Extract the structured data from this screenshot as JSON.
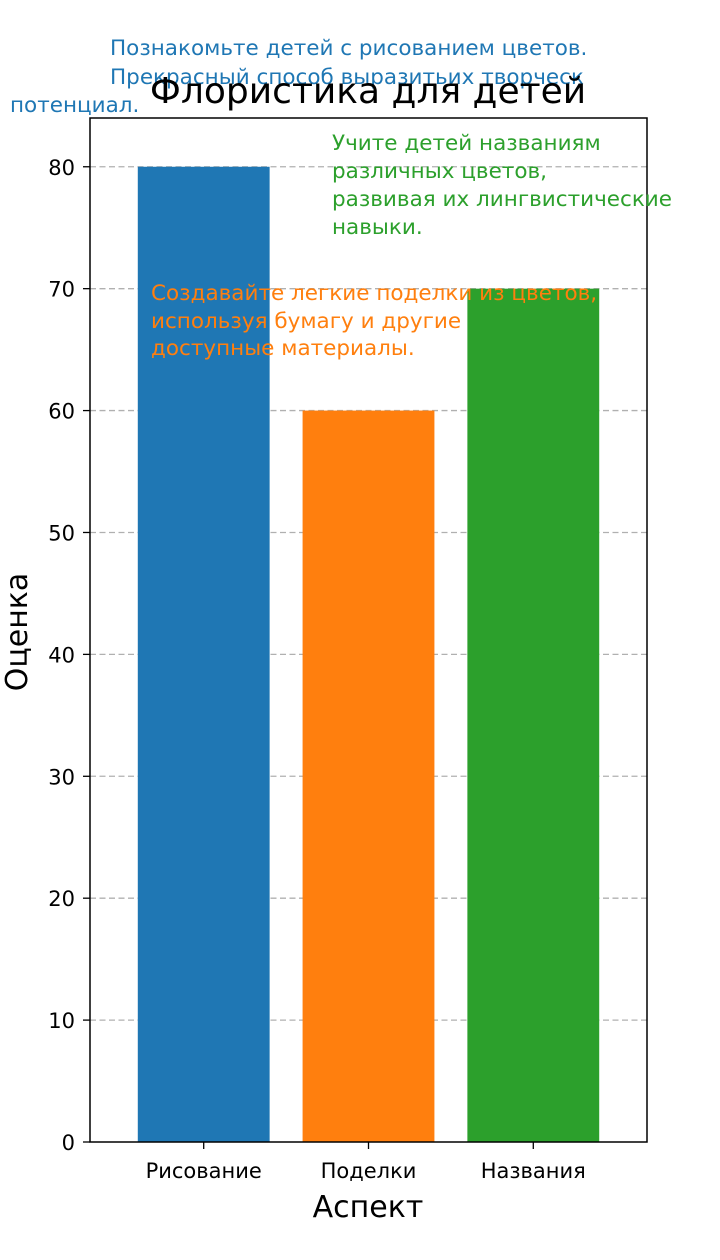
{
  "chart_data": {
    "type": "bar",
    "title": "Флористика для детей",
    "xlabel": "Аспект",
    "ylabel": "Оценка",
    "categories": [
      "Рисование",
      "Поделки",
      "Названия"
    ],
    "values": [
      80,
      60,
      70
    ],
    "colors": [
      "#1f77b4",
      "#ff7f0e",
      "#2ca02c"
    ],
    "ylim": [
      0,
      84
    ],
    "yticks": [
      "0",
      "10",
      "20",
      "30",
      "40",
      "50",
      "60",
      "70",
      "80"
    ],
    "grid": "horizontal dashed",
    "legend": "none",
    "annotations": [
      {
        "lines": [
          "Познакомьте детей с рисованием цветов.",
          "Прекрасный способ выразитьих творческ",
          "потенциал."
        ],
        "color": "#1f77b4"
      },
      {
        "lines": [
          "Создавайте легкие поделки из цветов,",
          "используя бумагу и другие",
          "доступные материалы."
        ],
        "color": "#ff7f0e"
      },
      {
        "lines": [
          "Учите детей названиям",
          "различных цветов,",
          "развивая их лингвистические",
          "навыки."
        ],
        "color": "#2ca02c"
      }
    ]
  }
}
